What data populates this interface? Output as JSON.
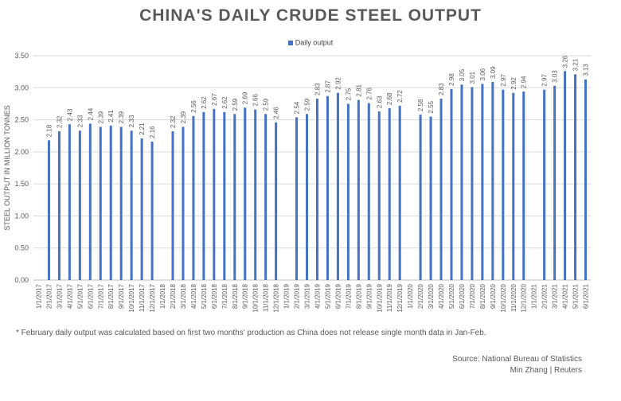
{
  "chart_data": {
    "type": "bar",
    "title": "CHINA'S DAILY CRUDE STEEL OUTPUT",
    "ylabel": "STEEL OUTPUT IN MILLION TONNES",
    "xlabel": "",
    "ylim": [
      0,
      3.5
    ],
    "yticks": [
      "0.00",
      "0.50",
      "1.00",
      "1.50",
      "2.00",
      "2.50",
      "3.00",
      "3.50"
    ],
    "legend_position": "top-center",
    "grid": true,
    "bar_color": "#4472c4",
    "categories": [
      "1/1/2017",
      "2/1/2017",
      "3/1/2017",
      "4/1/2017",
      "5/1/2017",
      "6/1/2017",
      "7/1/2017",
      "8/1/2017",
      "9/1/2017",
      "10/1/2017",
      "11/1/2017",
      "12/1/2017",
      "1/1/2018",
      "2/1/2018",
      "3/1/2018",
      "4/1/2018",
      "5/1/2018",
      "6/1/2018",
      "7/1/2018",
      "8/1/2018",
      "9/1/2018",
      "10/1/2018",
      "11/1/2018",
      "12/1/2018",
      "1/1/2019",
      "2/1/2019",
      "3/1/2019",
      "4/1/2019",
      "5/1/2019",
      "6/1/2019",
      "7/1/2019",
      "8/1/2019",
      "9/1/2019",
      "10/1/2019",
      "11/1/2019",
      "12/1/2019",
      "1/1/2020",
      "2/1/2020",
      "3/1/2020",
      "4/1/2020",
      "5/1/2020",
      "6/1/2020",
      "7/1/2020",
      "8/1/2020",
      "9/1/2020",
      "10/1/2020",
      "11/1/2020",
      "12/1/2020",
      "1/1/2021",
      "2/1/2021",
      "3/1/2021",
      "4/1/2021",
      "5/1/2021",
      "6/1/2021"
    ],
    "series": [
      {
        "name": "Daily output",
        "values": [
          null,
          2.18,
          2.32,
          2.43,
          2.33,
          2.44,
          2.39,
          2.41,
          2.39,
          2.33,
          2.21,
          2.16,
          null,
          2.32,
          2.39,
          2.56,
          2.62,
          2.67,
          2.62,
          2.59,
          2.69,
          2.66,
          2.59,
          2.46,
          null,
          2.54,
          2.59,
          2.83,
          2.87,
          2.92,
          2.75,
          2.81,
          2.76,
          2.63,
          2.68,
          2.72,
          null,
          2.58,
          2.55,
          2.83,
          2.98,
          3.05,
          3.01,
          3.06,
          3.09,
          2.97,
          2.92,
          2.94,
          null,
          2.97,
          3.03,
          3.26,
          3.21,
          3.13
        ]
      }
    ]
  },
  "footnote": "* February daily output was calculated based on first two months' production as China does not release single month data in Jan-Feb.",
  "source": "Source: National Bureau of Statistics",
  "credit": "Min Zhang | Reuters"
}
